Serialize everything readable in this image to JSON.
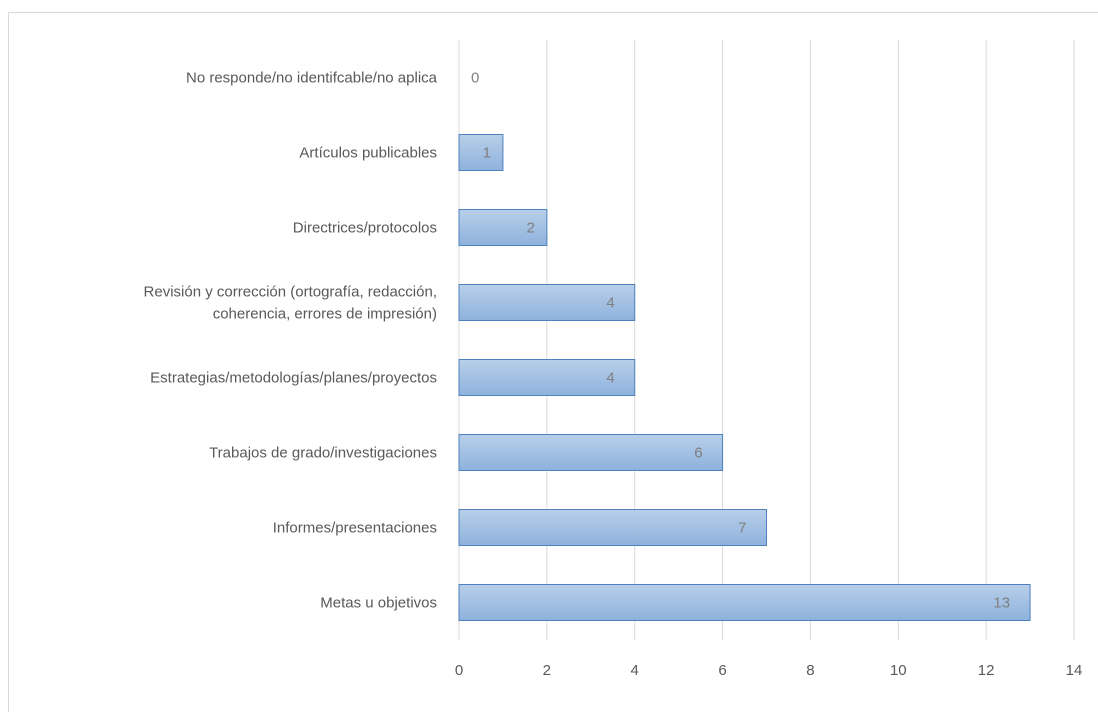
{
  "chart_data": {
    "type": "bar",
    "orientation": "horizontal",
    "categories": [
      "No responde/no identifcable/no aplica",
      "Artículos publicables",
      "Directrices/protocolos",
      "Revisión y corrección (ortografía, redacción,\ncoherencia, errores de impresión)",
      "Estrategias/metodologías/planes/proyectos",
      "Trabajos de grado/investigaciones",
      "Informes/presentaciones",
      "Metas u objetivos"
    ],
    "values": [
      0,
      1,
      2,
      4,
      4,
      6,
      7,
      13
    ],
    "data_labels": [
      "0",
      "1",
      "2",
      "4",
      "4",
      "6",
      "7",
      "13"
    ],
    "xlim": [
      0,
      14
    ],
    "x_ticks": [
      "0",
      "2",
      "4",
      "6",
      "8",
      "10",
      "12",
      "14"
    ],
    "grid": true,
    "title": "",
    "xlabel": "",
    "ylabel": "",
    "colors": {
      "bar_fill_top": "#b8cfe9",
      "bar_fill_bottom": "#8eb2dd",
      "bar_stroke": "#4f81bd",
      "grid": "#d9d9d9",
      "text": "#595959",
      "data_label": "#7f7f7f"
    }
  }
}
